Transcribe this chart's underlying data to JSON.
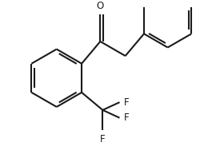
{
  "bg_color": "#ffffff",
  "line_color": "#1a1a1a",
  "bond_width": 1.5,
  "font_size": 8.5,
  "fig_width": 2.51,
  "fig_height": 1.93,
  "dpi": 100,
  "label_O": "O",
  "label_F": "F"
}
